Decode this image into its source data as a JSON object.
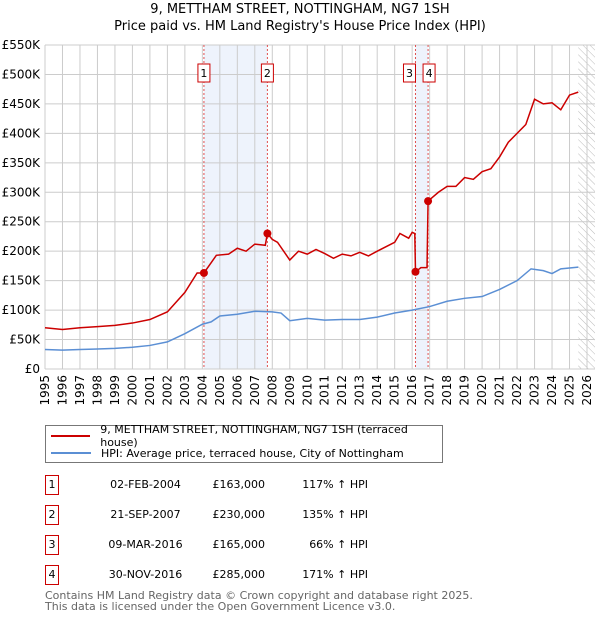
{
  "title": "9, METTHAM STREET, NOTTINGHAM, NG7 1SH",
  "subtitle": "Price paid vs. HM Land Registry's House Price Index (HPI)",
  "chart_data": {
    "type": "line",
    "title": "9, METTHAM STREET, NOTTINGHAM, NG7 1SH",
    "subtitle": "Price paid vs. HM Land Registry's House Price Index (HPI)",
    "xlim": [
      1995,
      2026
    ],
    "ylim": [
      0,
      550000
    ],
    "x_ticks": [
      "1995",
      "1996",
      "1997",
      "1998",
      "1999",
      "2000",
      "2001",
      "2002",
      "2003",
      "2004",
      "2005",
      "2006",
      "2007",
      "2008",
      "2009",
      "2010",
      "2011",
      "2012",
      "2013",
      "2014",
      "2015",
      "2016",
      "2017",
      "2018",
      "2019",
      "2020",
      "2021",
      "2022",
      "2023",
      "2024",
      "2025",
      "2026"
    ],
    "y_ticks": [
      {
        "v": 0,
        "l": "£0"
      },
      {
        "v": 50000,
        "l": "£50K"
      },
      {
        "v": 100000,
        "l": "£100K"
      },
      {
        "v": 150000,
        "l": "£150K"
      },
      {
        "v": 200000,
        "l": "£200K"
      },
      {
        "v": 250000,
        "l": "£250K"
      },
      {
        "v": 300000,
        "l": "£300K"
      },
      {
        "v": 350000,
        "l": "£350K"
      },
      {
        "v": 400000,
        "l": "£400K"
      },
      {
        "v": 450000,
        "l": "£450K"
      },
      {
        "v": 500000,
        "l": "£500K"
      },
      {
        "v": 550000,
        "l": "£550K"
      }
    ],
    "grid": true,
    "series": [
      {
        "name": "9, METTHAM STREET, NOTTINGHAM, NG7 1SH (terraced house)",
        "color": "#cc0000",
        "points": [
          [
            1995,
            70000
          ],
          [
            1996,
            67000
          ],
          [
            1997,
            70000
          ],
          [
            1998,
            72000
          ],
          [
            1999,
            74000
          ],
          [
            2000,
            78000
          ],
          [
            2001,
            84000
          ],
          [
            2002,
            97000
          ],
          [
            2003,
            130000
          ],
          [
            2003.7,
            163000
          ],
          [
            2004.09,
            163000
          ],
          [
            2004.8,
            193000
          ],
          [
            2005.5,
            195000
          ],
          [
            2006,
            205000
          ],
          [
            2006.5,
            200000
          ],
          [
            2007,
            212000
          ],
          [
            2007.6,
            210000
          ],
          [
            2007.72,
            230000
          ],
          [
            2008,
            220000
          ],
          [
            2008.3,
            215000
          ],
          [
            2009,
            185000
          ],
          [
            2009.5,
            200000
          ],
          [
            2010,
            195000
          ],
          [
            2010.5,
            203000
          ],
          [
            2011,
            196000
          ],
          [
            2011.5,
            188000
          ],
          [
            2012,
            195000
          ],
          [
            2012.5,
            192000
          ],
          [
            2013,
            198000
          ],
          [
            2013.5,
            192000
          ],
          [
            2014,
            200000
          ],
          [
            2015,
            215000
          ],
          [
            2015.3,
            230000
          ],
          [
            2015.8,
            222000
          ],
          [
            2016,
            232000
          ],
          [
            2016.15,
            230000
          ],
          [
            2016.19,
            165000
          ],
          [
            2016.5,
            172000
          ],
          [
            2016.85,
            172000
          ],
          [
            2016.91,
            285000
          ],
          [
            2017.5,
            300000
          ],
          [
            2018,
            310000
          ],
          [
            2018.5,
            310000
          ],
          [
            2019,
            325000
          ],
          [
            2019.5,
            322000
          ],
          [
            2020,
            335000
          ],
          [
            2020.5,
            340000
          ],
          [
            2021,
            360000
          ],
          [
            2021.5,
            385000
          ],
          [
            2022,
            400000
          ],
          [
            2022.5,
            415000
          ],
          [
            2023,
            458000
          ],
          [
            2023.5,
            450000
          ],
          [
            2024,
            452000
          ],
          [
            2024.5,
            440000
          ],
          [
            2025,
            465000
          ],
          [
            2025.5,
            470000
          ]
        ]
      },
      {
        "name": "HPI: Average price, terraced house, City of Nottingham",
        "color": "#5b8fd4",
        "points": [
          [
            1995,
            33000
          ],
          [
            1996,
            32000
          ],
          [
            1997,
            33000
          ],
          [
            1998,
            34000
          ],
          [
            1999,
            35000
          ],
          [
            2000,
            37000
          ],
          [
            2001,
            40000
          ],
          [
            2002,
            46000
          ],
          [
            2003,
            60000
          ],
          [
            2004,
            76000
          ],
          [
            2004.5,
            80000
          ],
          [
            2005,
            90000
          ],
          [
            2006,
            93000
          ],
          [
            2007,
            98000
          ],
          [
            2008,
            97000
          ],
          [
            2008.5,
            95000
          ],
          [
            2009,
            82000
          ],
          [
            2010,
            86000
          ],
          [
            2011,
            83000
          ],
          [
            2012,
            84000
          ],
          [
            2013,
            84000
          ],
          [
            2014,
            88000
          ],
          [
            2015,
            95000
          ],
          [
            2016,
            100000
          ],
          [
            2017,
            106000
          ],
          [
            2018,
            115000
          ],
          [
            2019,
            120000
          ],
          [
            2020,
            123000
          ],
          [
            2021,
            135000
          ],
          [
            2022,
            150000
          ],
          [
            2022.8,
            170000
          ],
          [
            2023.5,
            167000
          ],
          [
            2024,
            162000
          ],
          [
            2024.5,
            170000
          ],
          [
            2025.5,
            173000
          ]
        ]
      }
    ],
    "sales": [
      {
        "id": "1",
        "x": 2004.09,
        "y": 163000
      },
      {
        "id": "2",
        "x": 2007.72,
        "y": 230000
      },
      {
        "id": "3",
        "x": 2016.19,
        "y": 165000
      },
      {
        "id": "4",
        "x": 2016.91,
        "y": 285000
      }
    ],
    "shaded": [
      [
        2004.09,
        2007.72
      ],
      [
        2016.19,
        2016.91
      ]
    ],
    "forecast_from": 2025.5
  },
  "legend": {
    "items": [
      "9, METTHAM STREET, NOTTINGHAM, NG7 1SH (terraced house)",
      "HPI: Average price, terraced house, City of Nottingham"
    ]
  },
  "transactions": [
    {
      "id": "1",
      "date": "02-FEB-2004",
      "price": "£163,000",
      "hpi": "117% ↑ HPI"
    },
    {
      "id": "2",
      "date": "21-SEP-2007",
      "price": "£230,000",
      "hpi": "135% ↑ HPI"
    },
    {
      "id": "3",
      "date": "09-MAR-2016",
      "price": "£165,000",
      "hpi": "66% ↑ HPI"
    },
    {
      "id": "4",
      "date": "30-NOV-2016",
      "price": "£285,000",
      "hpi": "171% ↑ HPI"
    }
  ],
  "footer": {
    "line1": "Contains HM Land Registry data © Crown copyright and database right 2025.",
    "line2": "This data is licensed under the Open Government Licence v3.0."
  }
}
